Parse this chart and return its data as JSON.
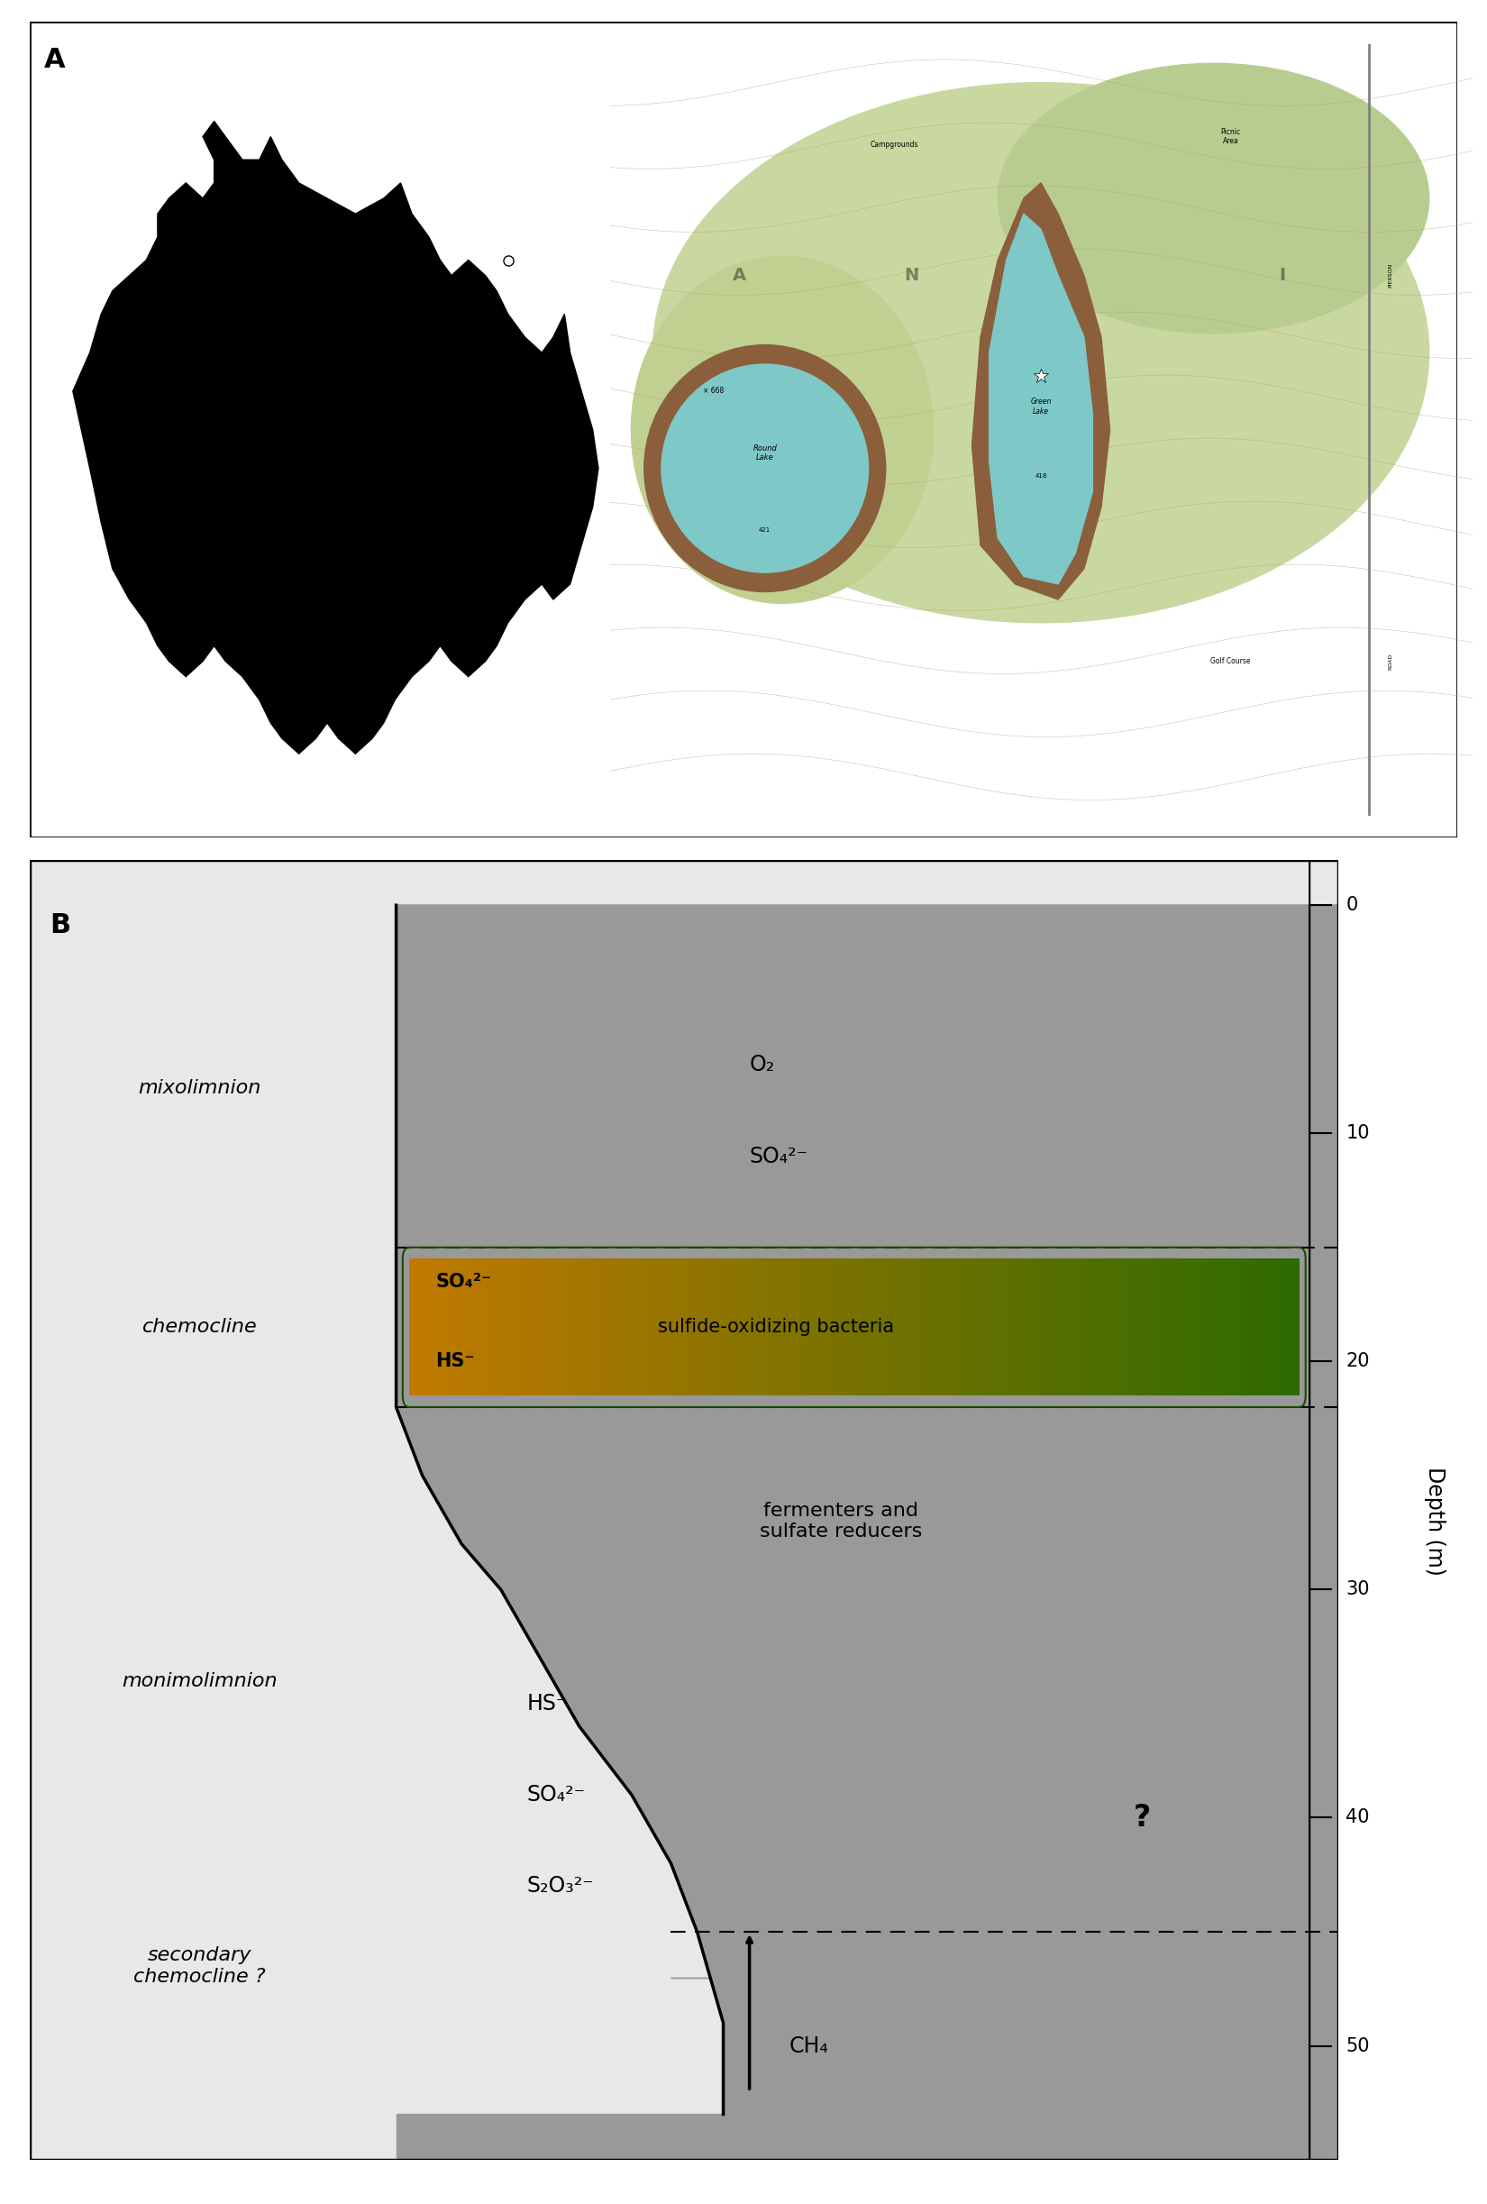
{
  "panel_a_label": "A",
  "panel_b_label": "B",
  "depth_label": "Depth (m)",
  "depth_ticks": [
    0,
    10,
    20,
    30,
    40,
    50
  ],
  "bg_light": "#e8e8e8",
  "bg_dark": "#999999",
  "bg_white": "#f0f0f0",
  "mixo_label": "mixolimnion",
  "chemo_label": "chemocline",
  "monimo_label": "monimolimnion",
  "sec_chemo_label": "secondary\nchemocline ?",
  "o2_label": "O₂",
  "so4_label_top": "SO₄²⁻",
  "bacteria_label": "sulfide-oxidizing bacteria",
  "so4_chemo": "SO₄²⁻",
  "hs_chemo": "HS⁻",
  "fermenters_label": "fermenters and\nsulfate reducers",
  "hs_monimo": "HS⁻",
  "so4_monimo": "SO₄²⁻",
  "s2o3_monimo": "S₂O₃²⁻",
  "question_mark": "?",
  "ch4_label": "CH₄",
  "border_color": "#333333",
  "dashed_color": "#333333",
  "gradient_colors_left": "#c17a00",
  "gradient_colors_right": "#2d6b00",
  "bacteria_border": "#1a4a00"
}
